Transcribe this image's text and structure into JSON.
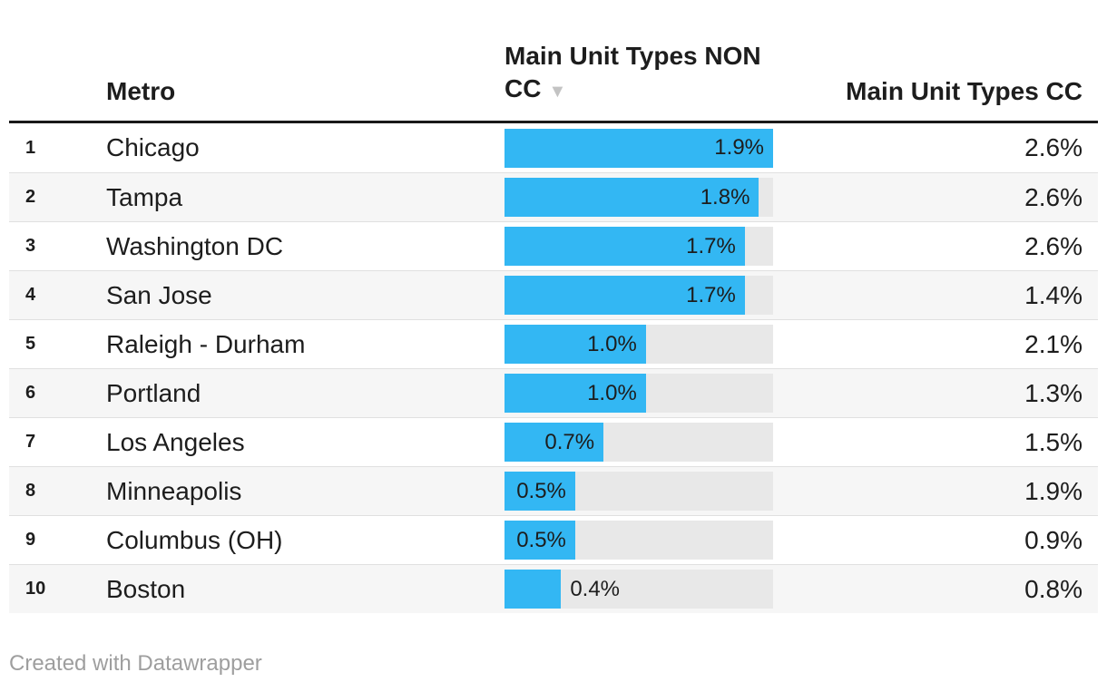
{
  "header": {
    "metro_label": "Metro",
    "non_cc_line1": "Main Unit Types NON",
    "non_cc_line2": "CC",
    "non_cc_full_label": "Main Unit Types NON CC",
    "sort_icon": "▼",
    "cc_label": "Main Unit Types CC"
  },
  "rows": [
    {
      "rank": "1",
      "metro": "Chicago",
      "non_cc_label": "1.9%",
      "non_cc_value": 1.9,
      "cc_label": "2.6%",
      "bar_label_position": "inside"
    },
    {
      "rank": "2",
      "metro": "Tampa",
      "non_cc_label": "1.8%",
      "non_cc_value": 1.8,
      "cc_label": "2.6%",
      "bar_label_position": "inside"
    },
    {
      "rank": "3",
      "metro": "Washington DC",
      "non_cc_label": "1.7%",
      "non_cc_value": 1.7,
      "cc_label": "2.6%",
      "bar_label_position": "inside"
    },
    {
      "rank": "4",
      "metro": "San Jose",
      "non_cc_label": "1.7%",
      "non_cc_value": 1.7,
      "cc_label": "1.4%",
      "bar_label_position": "inside"
    },
    {
      "rank": "5",
      "metro": "Raleigh - Durham",
      "non_cc_label": "1.0%",
      "non_cc_value": 1.0,
      "cc_label": "2.1%",
      "bar_label_position": "inside"
    },
    {
      "rank": "6",
      "metro": "Portland",
      "non_cc_label": "1.0%",
      "non_cc_value": 1.0,
      "cc_label": "1.3%",
      "bar_label_position": "inside"
    },
    {
      "rank": "7",
      "metro": "Los Angeles",
      "non_cc_label": "0.7%",
      "non_cc_value": 0.7,
      "cc_label": "1.5%",
      "bar_label_position": "inside"
    },
    {
      "rank": "8",
      "metro": "Minneapolis",
      "non_cc_label": "0.5%",
      "non_cc_value": 0.5,
      "cc_label": "1.9%",
      "bar_label_position": "inside"
    },
    {
      "rank": "9",
      "metro": "Columbus (OH)",
      "non_cc_label": "0.5%",
      "non_cc_value": 0.5,
      "cc_label": "0.9%",
      "bar_label_position": "inside"
    },
    {
      "rank": "10",
      "metro": "Boston",
      "non_cc_label": "0.4%",
      "non_cc_value": 0.4,
      "cc_label": "0.8%",
      "bar_label_position": "outside"
    }
  ],
  "footer": {
    "credit": "Created with Datawrapper"
  },
  "colors": {
    "bar_fill": "#33b7f3",
    "bar_track": "#e8e8e8",
    "row_alt_bg": "#f6f6f6",
    "header_border": "#191919",
    "row_border": "#e0e0e0",
    "text": "#1d1d1d",
    "footer_text": "#9e9e9e",
    "sort_icon": "#c3c3c3"
  },
  "chart_data": {
    "type": "table",
    "columns": [
      "Metro",
      "Main Unit Types NON CC",
      "Main Unit Types CC"
    ],
    "sorted_by": "Main Unit Types NON CC",
    "sort_order": "descending",
    "categories": [
      "Chicago",
      "Tampa",
      "Washington DC",
      "San Jose",
      "Raleigh - Durham",
      "Portland",
      "Los Angeles",
      "Minneapolis",
      "Columbus (OH)",
      "Boston"
    ],
    "series": [
      {
        "name": "Main Unit Types NON CC",
        "display": "bar",
        "unit": "%",
        "values": [
          1.9,
          1.8,
          1.7,
          1.7,
          1.0,
          1.0,
          0.7,
          0.5,
          0.5,
          0.4
        ]
      },
      {
        "name": "Main Unit Types CC",
        "display": "number",
        "unit": "%",
        "values": [
          2.6,
          2.6,
          2.6,
          1.4,
          2.1,
          1.3,
          1.5,
          1.9,
          0.9,
          0.8
        ]
      }
    ],
    "bar_axis_max": 1.9,
    "legend_position": "none",
    "grid": false
  }
}
